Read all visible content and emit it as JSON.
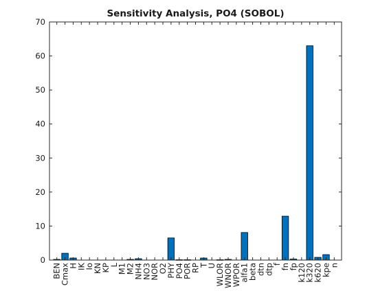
{
  "chart_data": {
    "type": "bar",
    "title": "Sensitivity Analysis, PO4 (SOBOL)",
    "xlabel": "",
    "ylabel": "",
    "ylim": [
      0,
      70
    ],
    "yticks": [
      0,
      10,
      20,
      30,
      40,
      50,
      60,
      70
    ],
    "grid": false,
    "bar_color": "#0072bd",
    "categories": [
      "BEN",
      "Cmax",
      "H",
      "IK",
      "Io",
      "KN",
      "KP",
      "L",
      "M1",
      "M2",
      "NH4",
      "NO3",
      "NOR",
      "O2",
      "PHY",
      "PO4",
      "POR",
      "RP",
      "T",
      "U",
      "WLOR",
      "WNOR",
      "WPOR",
      "alfa1",
      "beta",
      "dtn",
      "dtp",
      "f",
      "fn",
      "fp",
      "k120",
      "k320",
      "k620",
      "kpe",
      "n"
    ],
    "values": [
      0.2,
      2.0,
      0.6,
      0,
      0,
      0,
      0,
      0,
      0,
      0.2,
      0.4,
      0,
      0,
      0,
      6.5,
      0.1,
      0.1,
      0,
      0.6,
      0,
      0.1,
      0.2,
      0,
      8.1,
      0,
      0,
      0,
      0,
      12.9,
      0.3,
      0,
      63.0,
      0.8,
      1.6,
      0
    ]
  }
}
